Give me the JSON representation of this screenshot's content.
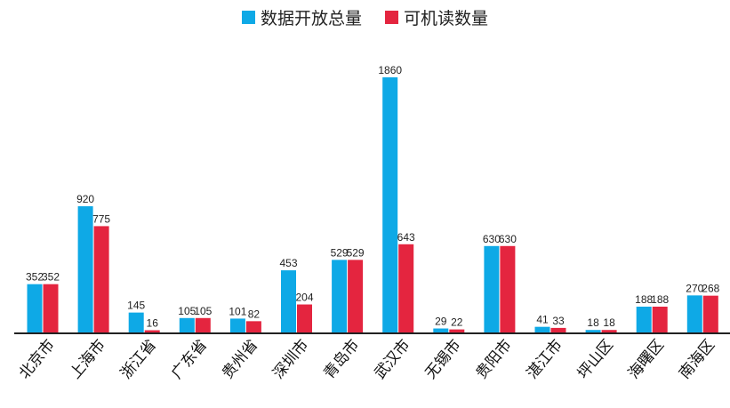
{
  "chart_data": {
    "type": "bar",
    "categories": [
      "北京市",
      "上海市",
      "浙江省",
      "广东省",
      "贵州省",
      "深圳市",
      "青岛市",
      "武汉市",
      "无锡市",
      "贵阳市",
      "湛江市",
      "坪山区",
      "海曙区",
      "南海区"
    ],
    "series": [
      {
        "name": "数据开放总量",
        "color": "#0ea9e6",
        "values": [
          352,
          920,
          145,
          105,
          101,
          453,
          529,
          1860,
          29,
          630,
          41,
          18,
          188,
          270
        ]
      },
      {
        "name": "可机读数量",
        "color": "#e4253f",
        "values": [
          352,
          775,
          16,
          105,
          82,
          204,
          529,
          643,
          22,
          630,
          33,
          18,
          188,
          268
        ]
      }
    ],
    "legend_position": "top",
    "grid": false,
    "ylim": [
      0,
      1860
    ]
  }
}
